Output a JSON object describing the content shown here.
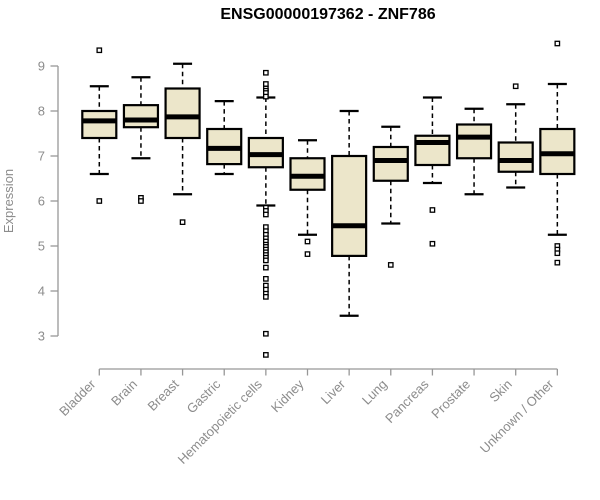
{
  "title": "ENSG00000197362 - ZNF786",
  "chart_data": {
    "type": "boxplot",
    "title": "ENSG00000197362 - ZNF786",
    "xlabel": "",
    "ylabel": "Expression",
    "ylim": [
      2.5,
      9.6
    ],
    "yticks": [
      3,
      4,
      5,
      6,
      7,
      8,
      9
    ],
    "grid": false,
    "legend": "none",
    "categories": [
      "Bladder",
      "Brain",
      "Breast",
      "Gastric",
      "Hematopoietic cells",
      "Kidney",
      "Liver",
      "Lung",
      "Pancreas",
      "Prostate",
      "Skin",
      "Unknown / Other"
    ],
    "series": [
      {
        "name": "Bladder",
        "whisker_low": 6.6,
        "q1": 7.4,
        "median": 7.78,
        "q3": 8.0,
        "whisker_high": 8.55,
        "outliers": [
          9.35,
          6.0
        ]
      },
      {
        "name": "Brain",
        "whisker_low": 6.95,
        "q1": 7.64,
        "median": 7.8,
        "q3": 8.13,
        "whisker_high": 8.75,
        "outliers": [
          6.07,
          6.0
        ]
      },
      {
        "name": "Breast",
        "whisker_low": 6.15,
        "q1": 7.4,
        "median": 7.87,
        "q3": 8.5,
        "whisker_high": 9.05,
        "outliers": [
          5.53
        ]
      },
      {
        "name": "Gastric",
        "whisker_low": 6.6,
        "q1": 6.82,
        "median": 7.17,
        "q3": 7.6,
        "whisker_high": 8.22,
        "outliers": []
      },
      {
        "name": "Hematopoietic cells",
        "whisker_low": 5.9,
        "q1": 6.75,
        "median": 7.03,
        "q3": 7.4,
        "whisker_high": 8.3,
        "outliers": [
          8.85,
          8.6,
          8.5,
          8.45,
          8.4,
          8.32,
          5.85,
          5.78,
          5.7,
          5.42,
          5.33,
          5.25,
          5.17,
          5.1,
          5.03,
          4.98,
          4.92,
          4.86,
          4.8,
          4.74,
          4.68,
          4.52,
          4.27,
          4.12,
          4.03,
          3.94,
          3.87,
          3.05,
          2.58
        ]
      },
      {
        "name": "Kidney",
        "whisker_low": 5.25,
        "q1": 6.25,
        "median": 6.55,
        "q3": 6.95,
        "whisker_high": 7.35,
        "outliers": [
          5.1,
          4.82
        ]
      },
      {
        "name": "Liver",
        "whisker_low": 3.45,
        "q1": 4.78,
        "median": 5.45,
        "q3": 7.0,
        "whisker_high": 8.0,
        "outliers": []
      },
      {
        "name": "Lung",
        "whisker_low": 5.5,
        "q1": 6.45,
        "median": 6.9,
        "q3": 7.2,
        "whisker_high": 7.65,
        "outliers": [
          4.58
        ]
      },
      {
        "name": "Pancreas",
        "whisker_low": 6.4,
        "q1": 6.8,
        "median": 7.3,
        "q3": 7.45,
        "whisker_high": 8.3,
        "outliers": [
          5.8,
          5.05
        ]
      },
      {
        "name": "Prostate",
        "whisker_low": 6.15,
        "q1": 6.95,
        "median": 7.42,
        "q3": 7.7,
        "whisker_high": 8.05,
        "outliers": []
      },
      {
        "name": "Skin",
        "whisker_low": 6.3,
        "q1": 6.65,
        "median": 6.9,
        "q3": 7.3,
        "whisker_high": 8.15,
        "outliers": [
          8.55
        ]
      },
      {
        "name": "Unknown / Other",
        "whisker_low": 5.25,
        "q1": 6.6,
        "median": 7.05,
        "q3": 7.6,
        "whisker_high": 8.6,
        "outliers": [
          9.5,
          5.0,
          4.92,
          4.84,
          4.63
        ]
      }
    ],
    "colors": {
      "background": "#ffffff",
      "box_fill": "#ECE6CA",
      "box_border": "#000000",
      "median": "#000000",
      "whisker": "#000000",
      "outlier_fill": "#ffffff",
      "outlier_border": "#000000",
      "axis_line": "#979797",
      "axis_text": "#8c8c8c",
      "title_text": "#000000"
    }
  }
}
